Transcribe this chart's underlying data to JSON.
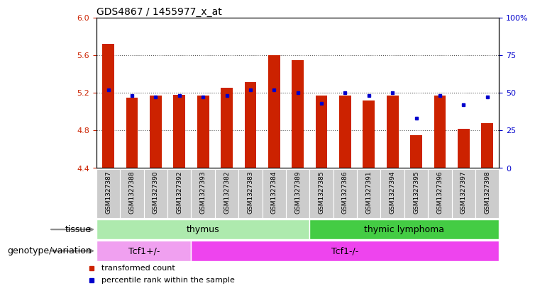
{
  "title": "GDS4867 / 1455977_x_at",
  "samples": [
    "GSM1327387",
    "GSM1327388",
    "GSM1327390",
    "GSM1327392",
    "GSM1327393",
    "GSM1327382",
    "GSM1327383",
    "GSM1327384",
    "GSM1327389",
    "GSM1327385",
    "GSM1327386",
    "GSM1327391",
    "GSM1327394",
    "GSM1327395",
    "GSM1327396",
    "GSM1327397",
    "GSM1327398"
  ],
  "transformed_count": [
    5.72,
    5.15,
    5.17,
    5.18,
    5.17,
    5.25,
    5.31,
    5.6,
    5.55,
    5.17,
    5.17,
    5.12,
    5.17,
    4.75,
    5.17,
    4.82,
    4.88
  ],
  "percentile_rank": [
    52,
    48,
    47,
    48,
    47,
    48,
    52,
    52,
    50,
    43,
    50,
    48,
    50,
    33,
    48,
    42,
    47
  ],
  "ylim_left": [
    4.4,
    6.0
  ],
  "ylim_right": [
    0,
    100
  ],
  "yticks_left": [
    4.4,
    4.8,
    5.2,
    5.6,
    6.0
  ],
  "yticks_right": [
    0,
    25,
    50,
    75,
    100
  ],
  "hlines": [
    4.8,
    5.2,
    5.6
  ],
  "tissue_groups": [
    {
      "label": "thymus",
      "start": 0,
      "end": 9,
      "color": "#aeeaae"
    },
    {
      "label": "thymic lymphoma",
      "start": 9,
      "end": 17,
      "color": "#44cc44"
    }
  ],
  "genotype_groups": [
    {
      "label": "Tcf1+/-",
      "start": 0,
      "end": 4,
      "color": "#f0a0f0"
    },
    {
      "label": "Tcf1-/-",
      "start": 4,
      "end": 17,
      "color": "#ee44ee"
    }
  ],
  "tissue_label": "tissue",
  "genotype_label": "genotype/variation",
  "bar_color": "#cc2200",
  "dot_color": "#0000cc",
  "bar_width": 0.5,
  "label_color_left": "#cc2200",
  "label_color_right": "#0000cc",
  "hline_style": ":",
  "hline_color": "#555555",
  "xtick_bg": "#cccccc",
  "xtick_sep_color": "#ffffff",
  "legend_bar_label": "transformed count",
  "legend_dot_label": "percentile rank within the sample",
  "title_fontsize": 10,
  "axis_fontsize": 8,
  "sample_fontsize": 6.5,
  "row_fontsize": 9,
  "legend_fontsize": 8
}
